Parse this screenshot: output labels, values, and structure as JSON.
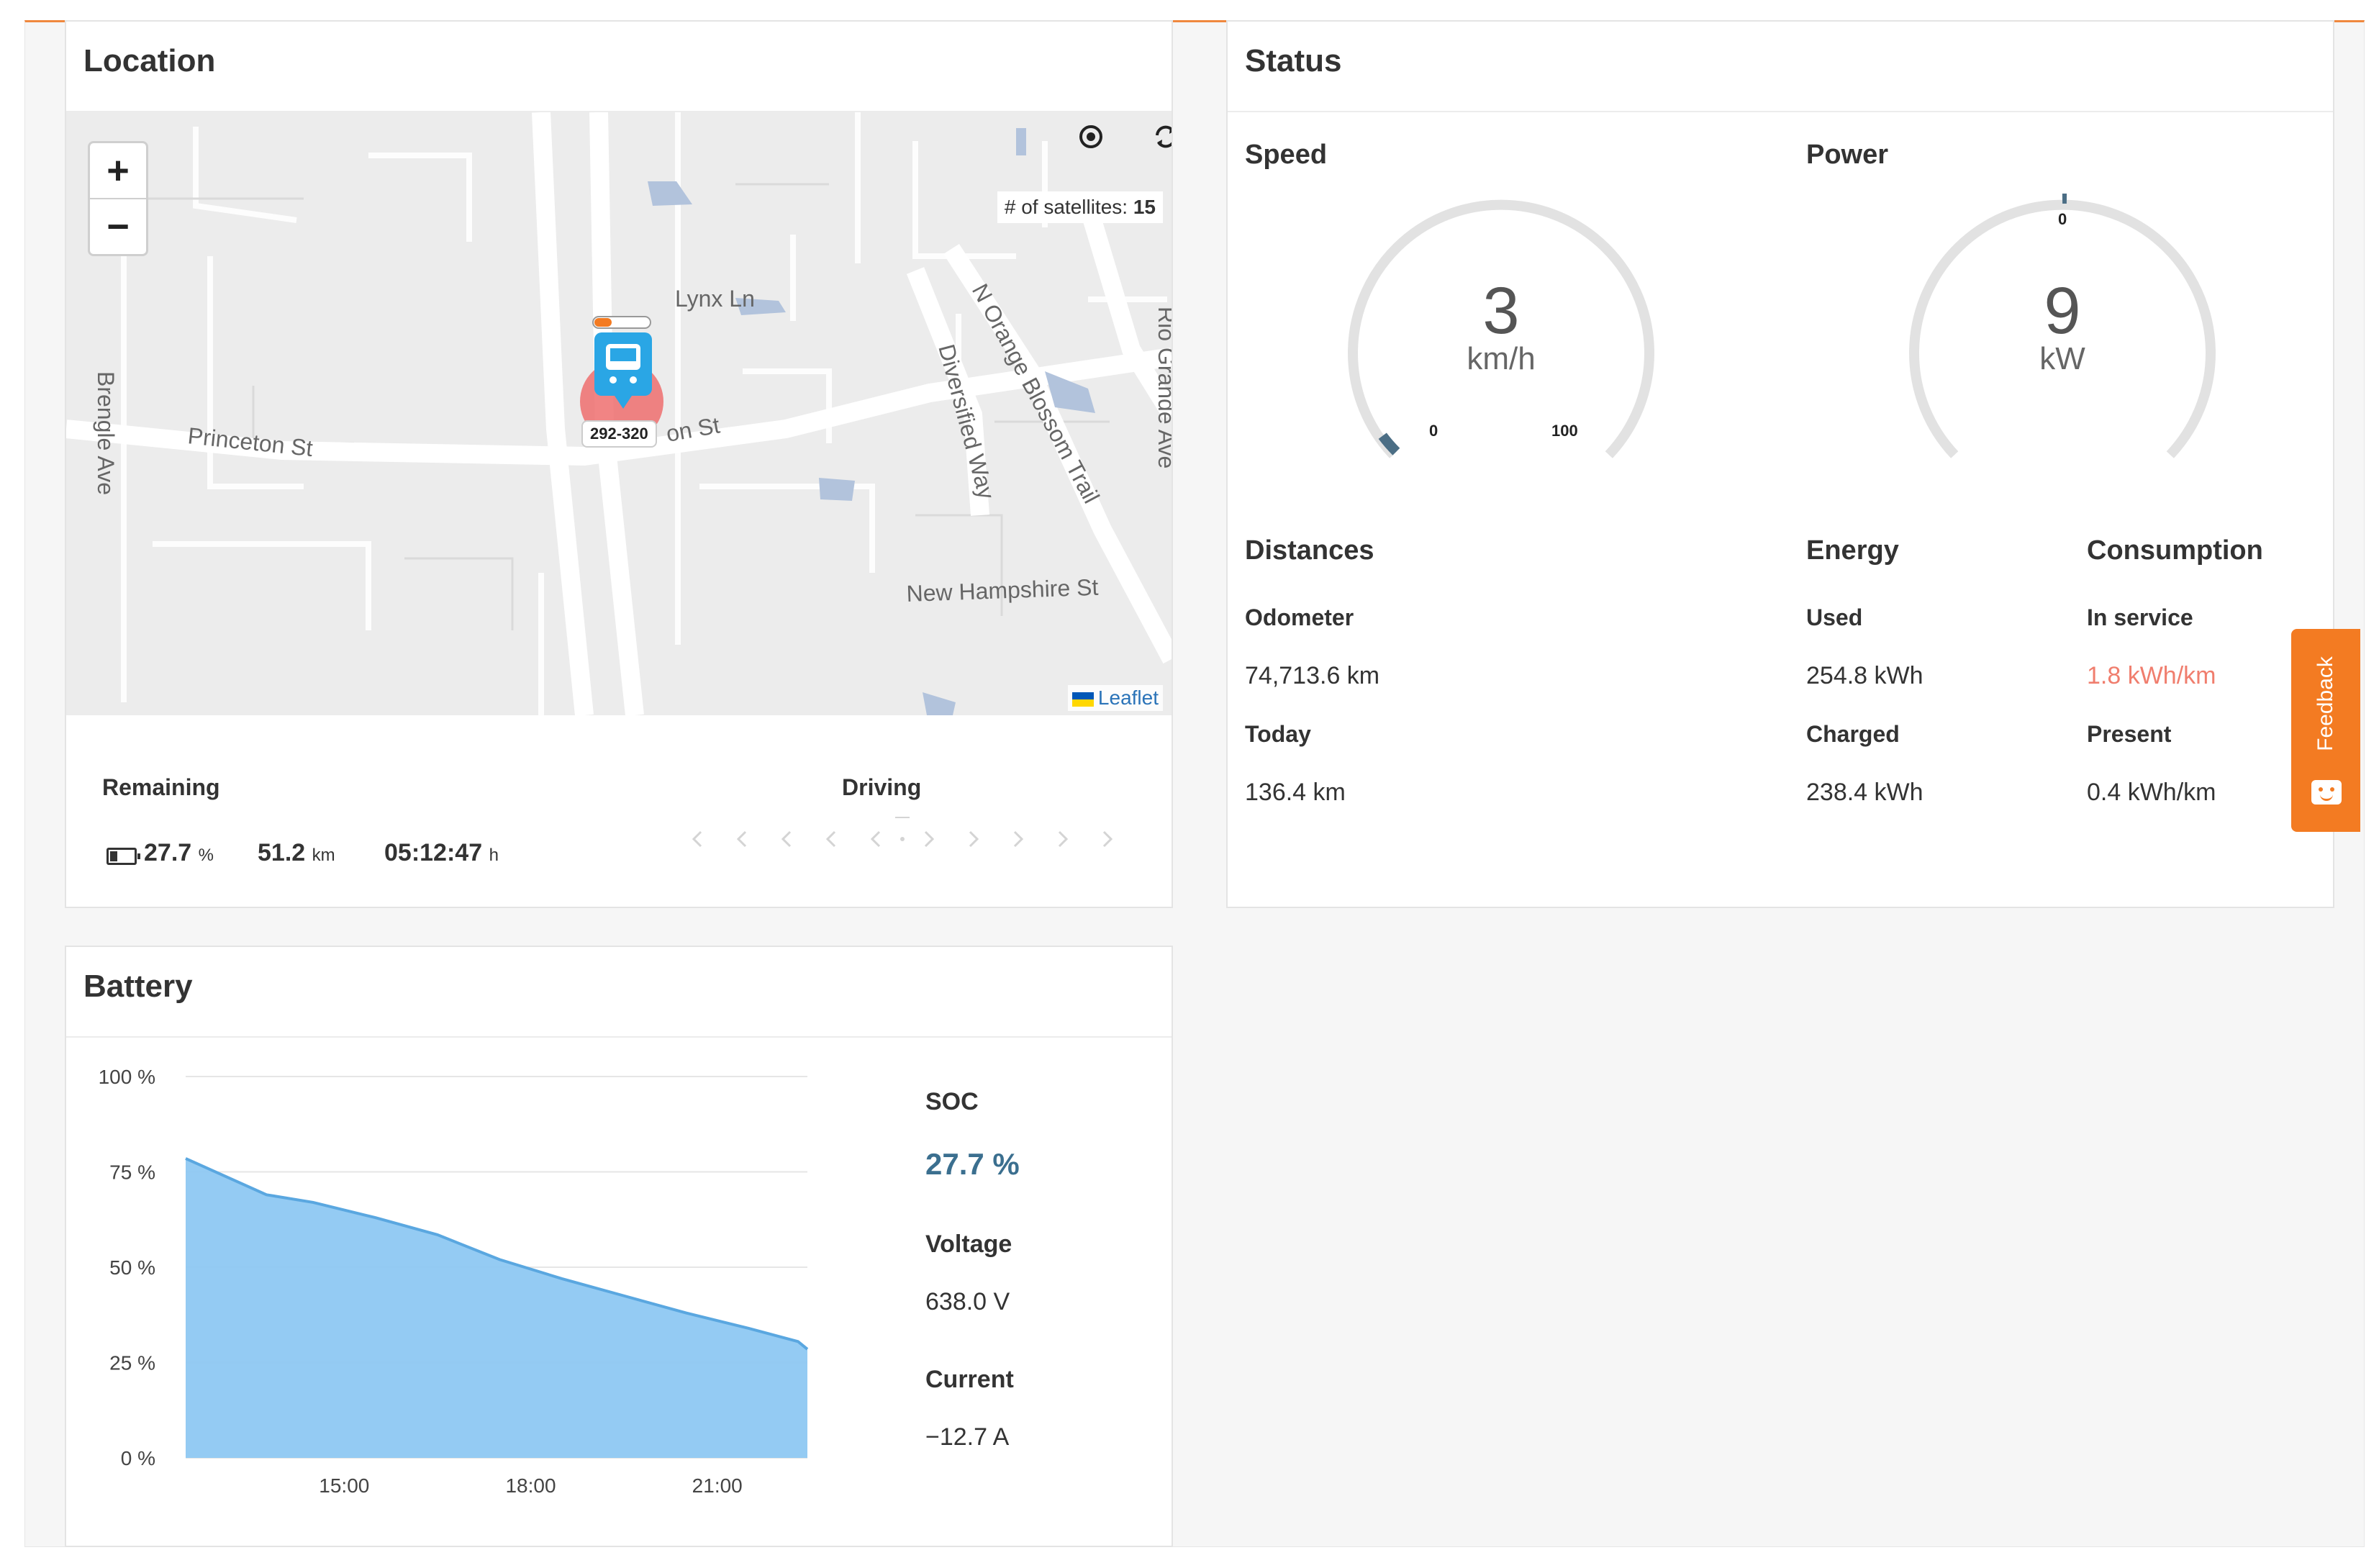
{
  "location": {
    "title": "Location",
    "map": {
      "satellites_label": "# of satellites:",
      "satellites_count": "15",
      "zoom_in": "+",
      "zoom_out": "−",
      "attribution": "Leaflet",
      "vehicle_label": "292-320",
      "streets": {
        "lynx": "Lynx Ln",
        "princeton": "Princeton St",
        "princeton_east": "on St",
        "brengle": "Brengle Ave",
        "diversified": "Diversified Way",
        "orange_blossom": "N Orange Blossom Trail",
        "rio_grande": "Rio Grande Ave",
        "new_hampshire": "New Hampshire St"
      }
    },
    "remaining_label": "Remaining",
    "driving_label": "Driving",
    "battery_pct": "27.7",
    "battery_pct_unit": "%",
    "range": "51.2",
    "range_unit": "km",
    "time": "05:12:47",
    "time_unit": "h"
  },
  "status": {
    "title": "Status",
    "speed": {
      "label": "Speed",
      "value": "3",
      "unit": "km/h",
      "min": "0",
      "max": "100",
      "fraction": 0.03
    },
    "power": {
      "label": "Power",
      "value": "9",
      "unit": "kW",
      "zero": "0"
    },
    "distances": {
      "title": "Distances",
      "odometer_label": "Odometer",
      "odometer": "74,713.6 km",
      "today_label": "Today",
      "today": "136.4 km"
    },
    "energy": {
      "title": "Energy",
      "used_label": "Used",
      "used": "254.8 kWh",
      "charged_label": "Charged",
      "charged": "238.4 kWh"
    },
    "consumption": {
      "title": "Consumption",
      "in_service_label": "In service",
      "in_service": "1.8 kWh/km",
      "present_label": "Present",
      "present": "0.4 kWh/km"
    }
  },
  "battery": {
    "title": "Battery",
    "soc_label": "SOC",
    "soc": "27.7 %",
    "voltage_label": "Voltage",
    "voltage": "638.0 V",
    "current_label": "Current",
    "current": "−12.7 A"
  },
  "feedback_label": "Feedback",
  "colors": {
    "accent": "#f37b22",
    "chart_fill": "#8ec8f2",
    "chart_line": "#5aa7e0",
    "warning": "#f07e6e",
    "soc": "#3b6f8f"
  },
  "chart_data": {
    "type": "area",
    "xlabel": "",
    "ylabel": "",
    "ylim": [
      0,
      100
    ],
    "x_tick_labels": [
      "15:00",
      "18:00",
      "21:00"
    ],
    "y_tick_labels": [
      "0 %",
      "25 %",
      "50 %",
      "75 %",
      "100 %"
    ],
    "x_hours": [
      12.45,
      13.75,
      14.5,
      15.5,
      16.5,
      17.5,
      18.5,
      19.5,
      20.5,
      21.5,
      22.3,
      22.45
    ],
    "series": [
      {
        "values": [
          78.5,
          69,
          67,
          63,
          58.5,
          52,
          47,
          42.5,
          38,
          34,
          30.5,
          28.5
        ]
      }
    ]
  }
}
